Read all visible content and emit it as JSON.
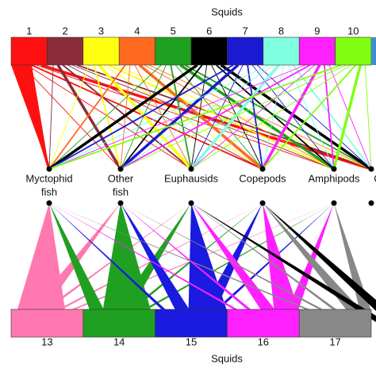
{
  "top_title": "Squids",
  "top_boxes": [
    "1",
    "2",
    "3",
    "4",
    "5",
    "6",
    "7",
    "8",
    "9",
    "10"
  ],
  "prey": [
    {
      "lines": [
        "Myctophid",
        "fish"
      ]
    },
    {
      "lines": [
        "Other",
        "fish"
      ]
    },
    {
      "lines": [
        "Euphausids"
      ]
    },
    {
      "lines": [
        "Copepods"
      ]
    },
    {
      "lines": [
        "Amphipods"
      ]
    },
    {
      "lines": [
        "C"
      ]
    }
  ],
  "bottom_boxes": [
    "13",
    "14",
    "15",
    "16",
    "17"
  ],
  "bottom_title": "Squids"
}
